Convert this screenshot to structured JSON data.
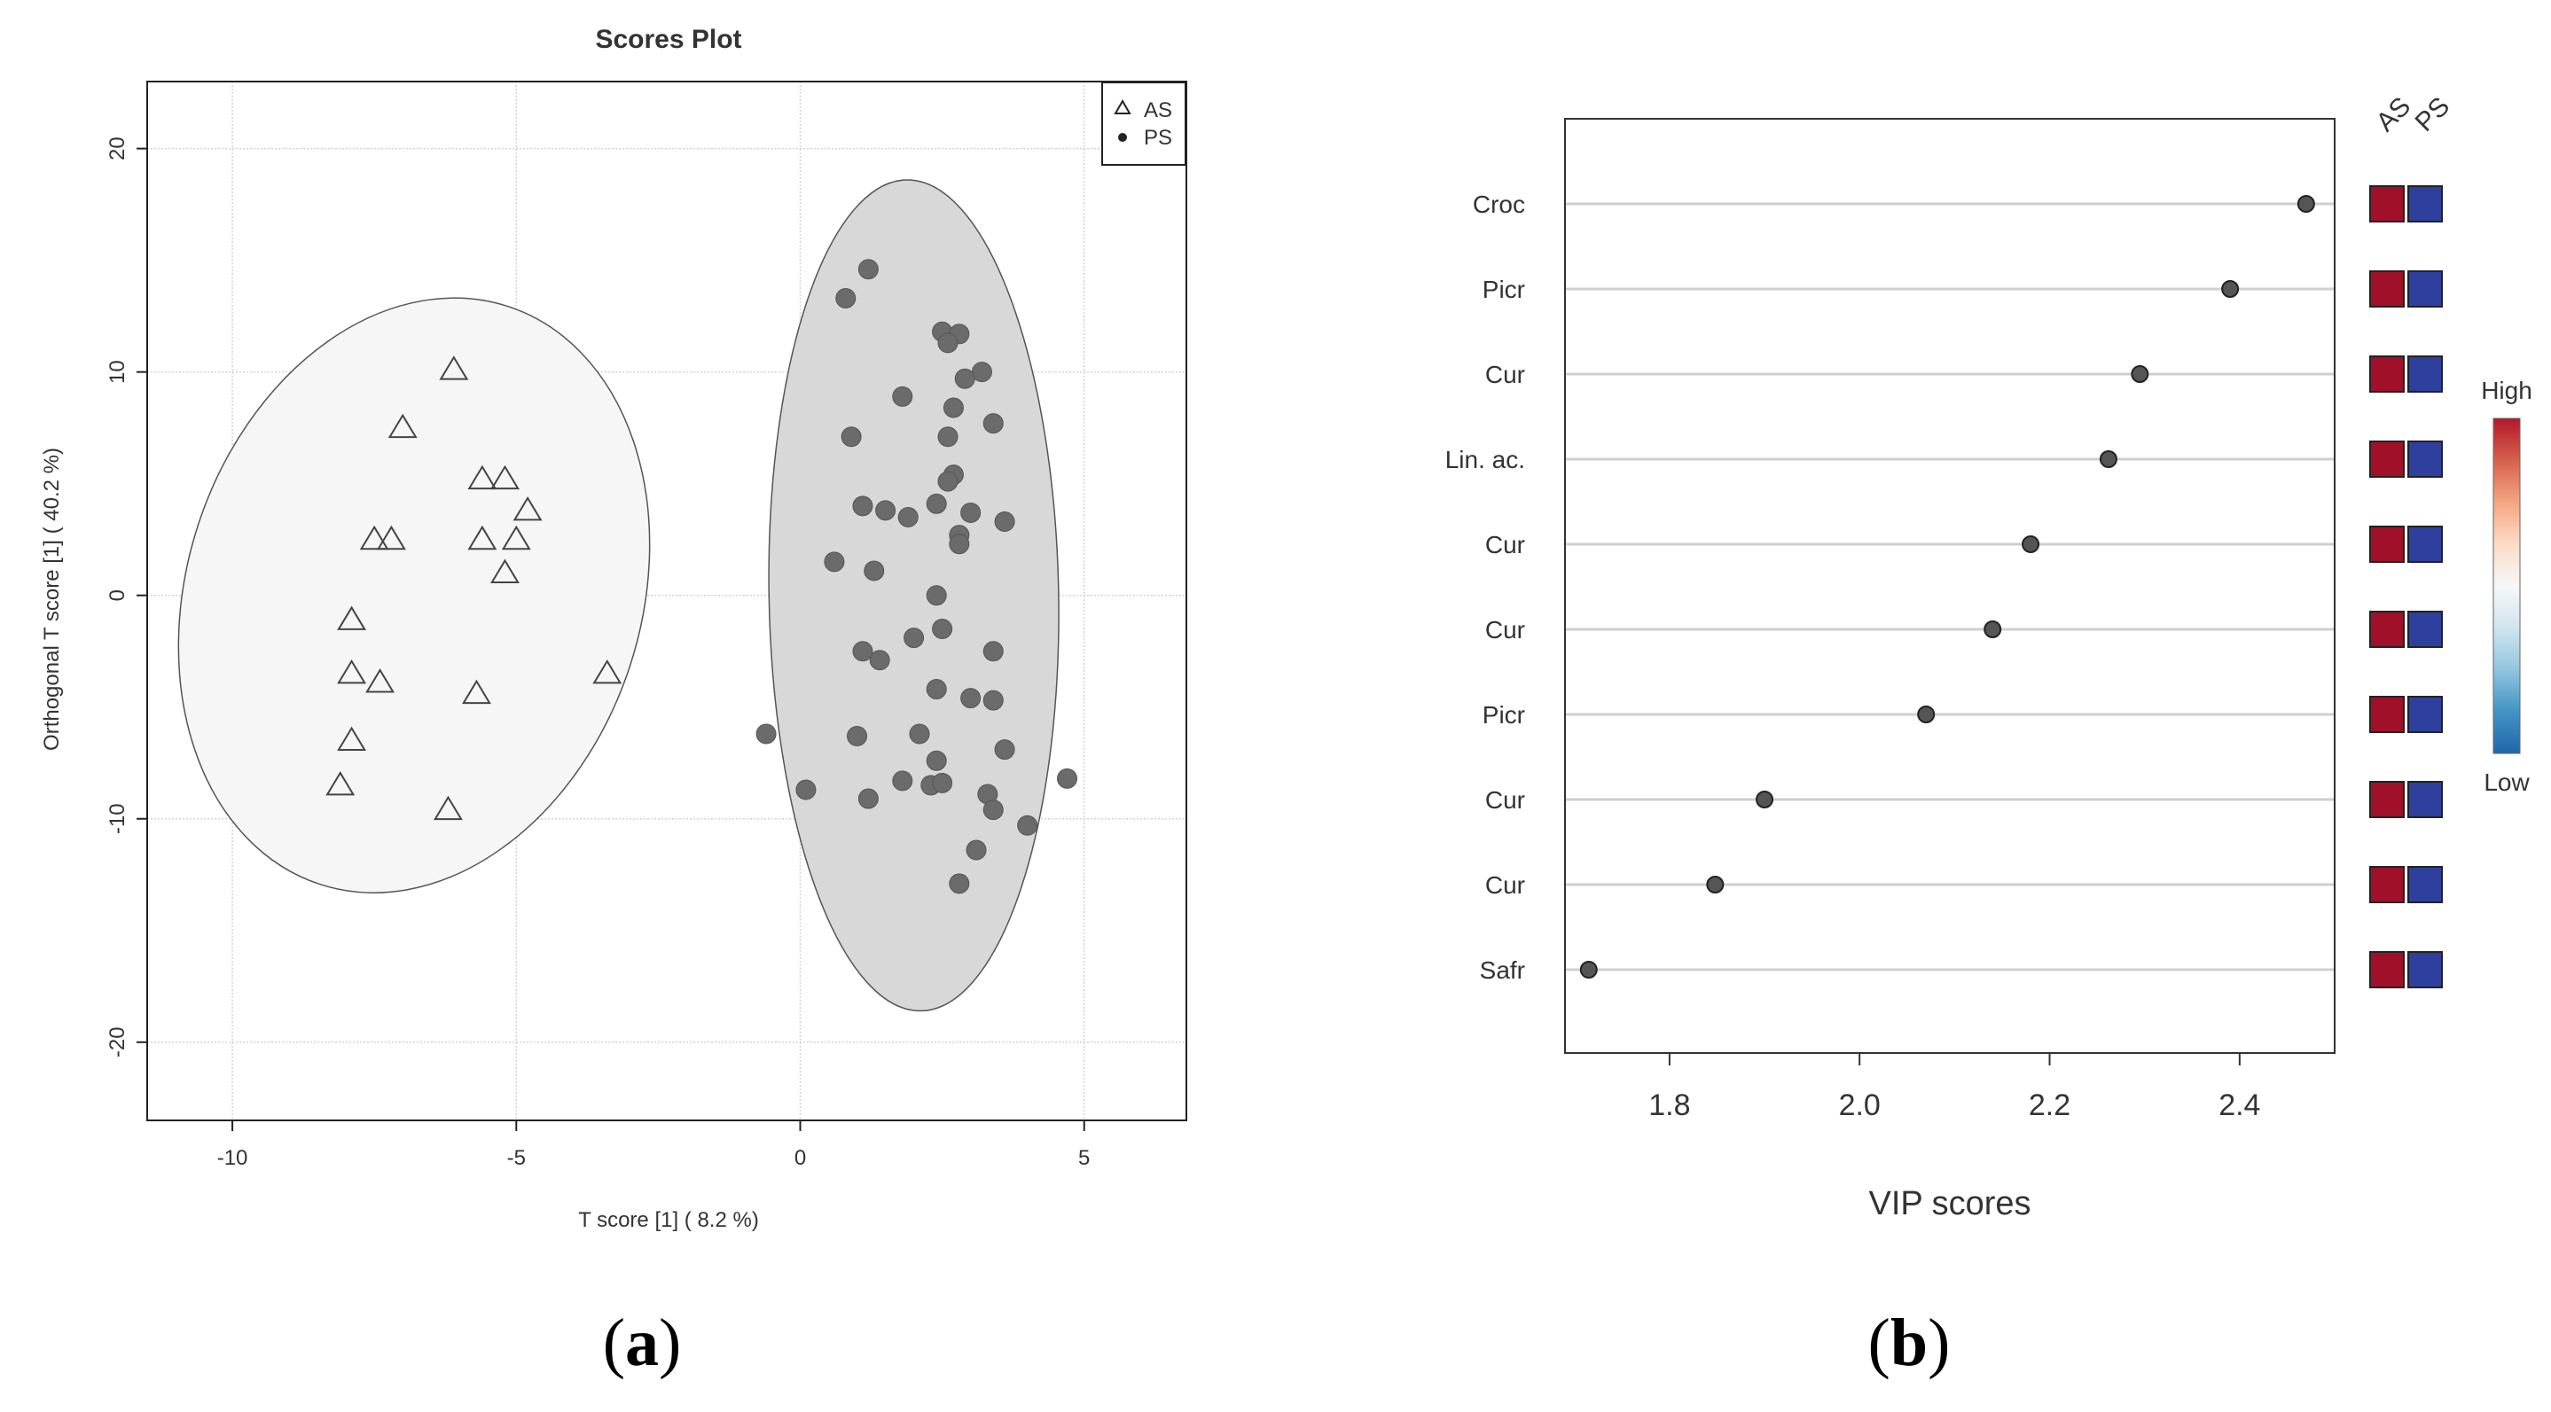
{
  "chart_data": [
    {
      "type": "scatter",
      "title": "Scores Plot",
      "xlabel": "T score [1] ( 8.2 %)",
      "ylabel": "Orthogonal T score [1] ( 40.2 %)",
      "xlim": [
        -11.5,
        6.8
      ],
      "ylim": [
        -23.5,
        23
      ],
      "xticks": [
        -10,
        -5,
        0,
        5
      ],
      "yticks": [
        -20,
        -10,
        0,
        10,
        20
      ],
      "grid": true,
      "legend": {
        "position": "top-right",
        "entries": [
          "AS",
          "PS"
        ]
      },
      "panel_label": "a",
      "ellipses": [
        {
          "group": "AS",
          "cx": -6.8,
          "cy": 0.0,
          "rx": 4.0,
          "ry": 13.6,
          "angle_deg": 18,
          "fill": "#f6f6f6"
        },
        {
          "group": "PS",
          "cx": 2.0,
          "cy": 0.0,
          "rx": 2.55,
          "ry": 18.6,
          "angle_deg": -1,
          "fill": "#d8d8d8"
        }
      ],
      "series": [
        {
          "name": "AS",
          "marker": "triangle-open",
          "points": [
            [
              -6.1,
              10.1
            ],
            [
              -7.0,
              7.5
            ],
            [
              -5.6,
              5.2
            ],
            [
              -5.2,
              5.2
            ],
            [
              -4.8,
              3.8
            ],
            [
              -7.5,
              2.5
            ],
            [
              -7.2,
              2.5
            ],
            [
              -5.6,
              2.5
            ],
            [
              -5.0,
              2.5
            ],
            [
              -5.2,
              1.0
            ],
            [
              -7.9,
              -1.1
            ],
            [
              -7.9,
              -3.5
            ],
            [
              -7.4,
              -3.9
            ],
            [
              -5.7,
              -4.4
            ],
            [
              -3.4,
              -3.5
            ],
            [
              -7.9,
              -6.5
            ],
            [
              -8.1,
              -8.5
            ],
            [
              -6.2,
              -9.6
            ]
          ]
        },
        {
          "name": "PS",
          "marker": "circle-filled",
          "points": [
            [
              1.2,
              14.6
            ],
            [
              0.8,
              13.3
            ],
            [
              2.5,
              11.8
            ],
            [
              2.8,
              11.7
            ],
            [
              2.6,
              11.3
            ],
            [
              3.2,
              10.0
            ],
            [
              2.9,
              9.7
            ],
            [
              1.8,
              8.9
            ],
            [
              2.7,
              8.4
            ],
            [
              3.4,
              7.7
            ],
            [
              0.9,
              7.1
            ],
            [
              2.6,
              7.1
            ],
            [
              2.7,
              5.4
            ],
            [
              2.6,
              5.1
            ],
            [
              1.1,
              4.0
            ],
            [
              1.5,
              3.8
            ],
            [
              2.4,
              4.1
            ],
            [
              3.0,
              3.7
            ],
            [
              1.9,
              3.5
            ],
            [
              3.6,
              3.3
            ],
            [
              2.8,
              2.7
            ],
            [
              2.8,
              2.3
            ],
            [
              0.6,
              1.5
            ],
            [
              1.3,
              1.1
            ],
            [
              2.4,
              0.0
            ],
            [
              2.5,
              -1.5
            ],
            [
              2.0,
              -1.9
            ],
            [
              1.1,
              -2.5
            ],
            [
              3.4,
              -2.5
            ],
            [
              1.4,
              -2.9
            ],
            [
              2.4,
              -4.2
            ],
            [
              3.0,
              -4.6
            ],
            [
              3.4,
              -4.7
            ],
            [
              -0.6,
              -6.2
            ],
            [
              1.0,
              -6.3
            ],
            [
              2.1,
              -6.2
            ],
            [
              3.6,
              -6.9
            ],
            [
              2.4,
              -7.4
            ],
            [
              4.7,
              -8.2
            ],
            [
              1.8,
              -8.3
            ],
            [
              2.3,
              -8.5
            ],
            [
              2.5,
              -8.4
            ],
            [
              0.1,
              -8.7
            ],
            [
              1.2,
              -9.1
            ],
            [
              3.3,
              -8.9
            ],
            [
              3.4,
              -9.6
            ],
            [
              4.0,
              -10.3
            ],
            [
              3.1,
              -11.4
            ],
            [
              2.8,
              -12.9
            ]
          ]
        }
      ]
    },
    {
      "type": "scatter",
      "title": "",
      "xlabel": "VIP scores",
      "ylabel": "",
      "xlim": [
        1.69,
        2.5
      ],
      "xticks": [
        "1.8",
        "2.0",
        "2.2",
        "2.4"
      ],
      "grid": true,
      "panel_label": "b",
      "categories": [
        "Croc",
        "Picr",
        "Cur",
        "Lin. ac.",
        "Cur",
        "Cur",
        "Picr",
        "Cur",
        "Cur",
        "Safr"
      ],
      "values": [
        2.47,
        2.39,
        2.295,
        2.262,
        2.18,
        2.14,
        2.07,
        1.9,
        1.848,
        1.715
      ],
      "group_labels": [
        "AS",
        "PS"
      ],
      "group_colors": [
        "#a01028",
        "#2e3f9e"
      ],
      "colorbar": {
        "high_label": "High",
        "low_label": "Low",
        "colors": [
          "#b2182b",
          "#d6604d",
          "#f4a582",
          "#fddbc7",
          "#f7f7f7",
          "#d1e5f0",
          "#92c5de",
          "#4393c3",
          "#2166ac"
        ]
      }
    }
  ]
}
